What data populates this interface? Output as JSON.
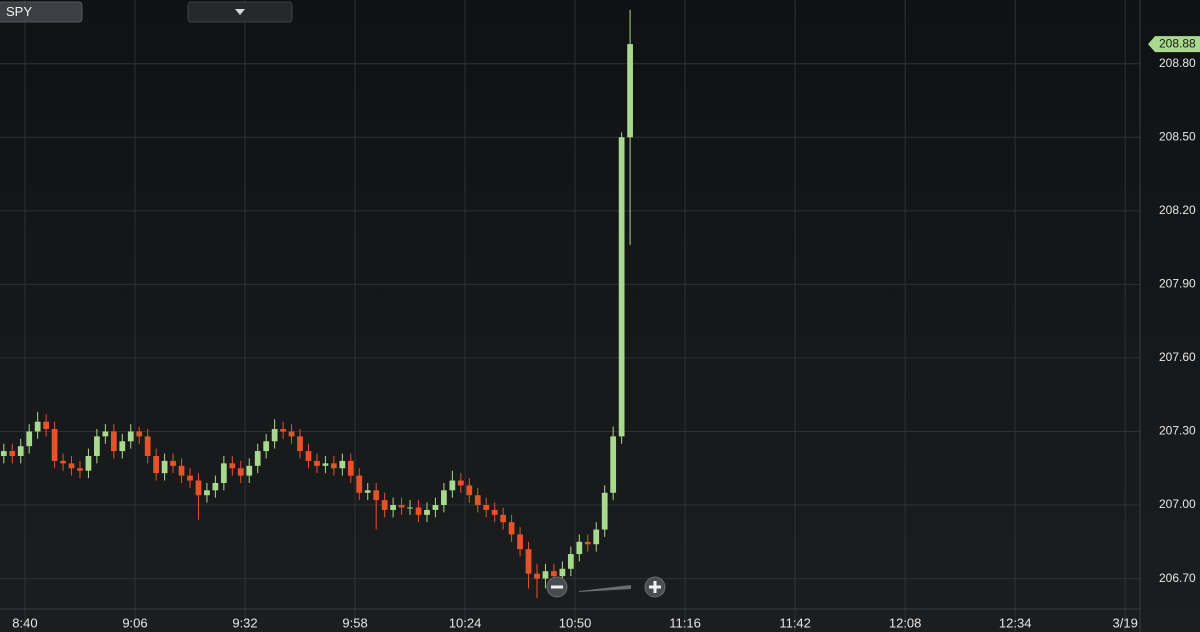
{
  "symbol": "SPY",
  "chart_data": {
    "type": "candlestick",
    "x": [
      515,
      517,
      519,
      521,
      523,
      525,
      527,
      529,
      531,
      533,
      535,
      537,
      539,
      541,
      543,
      545,
      547,
      549,
      551,
      553,
      555,
      557,
      559,
      561,
      563,
      565,
      567,
      569,
      571,
      573,
      575,
      577,
      579,
      581,
      583,
      585,
      587,
      589,
      591,
      593,
      595,
      597,
      599,
      601,
      603,
      605,
      607,
      609,
      611,
      613,
      615,
      617,
      619,
      621,
      623,
      625,
      627,
      629,
      631,
      633,
      635,
      637,
      639,
      641,
      643,
      645,
      647,
      649,
      651,
      653,
      655,
      657,
      659,
      661,
      663
    ],
    "open": [
      207.2,
      207.22,
      207.2,
      207.24,
      207.3,
      207.34,
      207.31,
      207.18,
      207.17,
      207.15,
      207.14,
      207.2,
      207.28,
      207.3,
      207.22,
      207.26,
      207.3,
      207.28,
      207.2,
      207.13,
      207.18,
      207.16,
      207.12,
      207.1,
      207.04,
      207.06,
      207.09,
      207.17,
      207.15,
      207.12,
      207.16,
      207.22,
      207.26,
      207.31,
      207.3,
      207.28,
      207.22,
      207.18,
      207.16,
      207.17,
      207.15,
      207.18,
      207.12,
      207.05,
      207.06,
      207.02,
      206.98,
      207.0,
      206.99,
      206.99,
      206.96,
      206.98,
      207.0,
      207.06,
      207.1,
      207.08,
      207.04,
      207.0,
      206.98,
      206.96,
      206.93,
      206.88,
      206.82,
      206.72,
      206.7,
      206.73,
      206.71,
      206.74,
      206.8,
      206.85,
      206.84,
      206.9,
      207.05,
      207.28,
      208.5
    ],
    "high": [
      207.25,
      207.25,
      207.27,
      207.33,
      207.38,
      207.37,
      207.34,
      207.21,
      207.2,
      207.18,
      207.23,
      207.31,
      207.33,
      207.33,
      207.29,
      207.33,
      207.32,
      207.31,
      207.23,
      207.21,
      207.21,
      207.19,
      207.15,
      207.13,
      207.09,
      207.12,
      207.2,
      207.2,
      207.18,
      207.19,
      207.25,
      207.29,
      207.35,
      207.34,
      207.33,
      207.31,
      207.25,
      207.21,
      207.2,
      207.2,
      207.21,
      207.21,
      207.15,
      207.09,
      207.09,
      207.05,
      207.03,
      207.03,
      207.02,
      207.02,
      207.01,
      207.03,
      207.09,
      207.14,
      207.13,
      207.11,
      207.07,
      207.03,
      207.01,
      206.99,
      206.96,
      206.91,
      206.85,
      206.76,
      206.76,
      206.76,
      206.77,
      206.83,
      206.88,
      206.88,
      206.93,
      207.08,
      207.32,
      208.52,
      209.02
    ],
    "low": [
      207.17,
      207.17,
      207.17,
      207.21,
      207.27,
      207.28,
      207.15,
      207.14,
      207.12,
      207.11,
      207.11,
      207.17,
      207.25,
      207.19,
      207.19,
      207.23,
      207.25,
      207.17,
      207.1,
      207.1,
      207.13,
      207.09,
      207.07,
      206.94,
      207.01,
      207.03,
      207.06,
      207.12,
      207.09,
      207.09,
      207.13,
      207.19,
      207.23,
      207.27,
      207.25,
      207.19,
      207.15,
      207.13,
      207.13,
      207.12,
      207.12,
      207.09,
      207.02,
      207.02,
      206.9,
      206.95,
      206.95,
      206.96,
      206.96,
      206.93,
      206.93,
      206.95,
      206.97,
      207.03,
      207.05,
      207.01,
      206.97,
      206.95,
      206.93,
      206.9,
      206.85,
      206.79,
      206.66,
      206.62,
      206.66,
      206.68,
      206.68,
      206.71,
      206.77,
      206.81,
      206.81,
      206.87,
      207.02,
      207.25,
      208.06
    ],
    "close": [
      207.22,
      207.2,
      207.24,
      207.3,
      207.34,
      207.31,
      207.18,
      207.17,
      207.15,
      207.14,
      207.2,
      207.28,
      207.3,
      207.22,
      207.26,
      207.3,
      207.28,
      207.2,
      207.13,
      207.18,
      207.16,
      207.12,
      207.1,
      207.04,
      207.06,
      207.09,
      207.17,
      207.15,
      207.12,
      207.16,
      207.22,
      207.26,
      207.31,
      207.3,
      207.28,
      207.22,
      207.18,
      207.16,
      207.17,
      207.15,
      207.18,
      207.12,
      207.05,
      207.06,
      207.02,
      206.98,
      207.0,
      206.99,
      206.99,
      206.96,
      206.98,
      207.0,
      207.06,
      207.1,
      207.08,
      207.04,
      207.0,
      206.98,
      206.96,
      206.93,
      206.88,
      206.82,
      206.72,
      206.7,
      206.73,
      206.71,
      206.74,
      206.8,
      206.85,
      206.84,
      206.9,
      207.05,
      207.28,
      208.5,
      208.88
    ],
    "up_color": "#a9d98e",
    "down_color": "#e5532b",
    "last_price": 208.88,
    "xlim": [
      514.1,
      783.5
    ],
    "xticks": [
      {
        "value": 520,
        "label": "8:40"
      },
      {
        "value": 546,
        "label": "9:06"
      },
      {
        "value": 572,
        "label": "9:32"
      },
      {
        "value": 598,
        "label": "9:58"
      },
      {
        "value": 624,
        "label": "10:24"
      },
      {
        "value": 650,
        "label": "10:50"
      },
      {
        "value": 676,
        "label": "11:16"
      },
      {
        "value": 702,
        "label": "11:42"
      },
      {
        "value": 728,
        "label": "12:08"
      },
      {
        "value": 754,
        "label": "12:34"
      },
      {
        "value": 780,
        "label": "3/19"
      }
    ],
    "ylim": [
      206.58,
      209.06
    ],
    "yticks": [
      {
        "value": 206.7,
        "label": "206.70"
      },
      {
        "value": 207.0,
        "label": "207.00"
      },
      {
        "value": 207.3,
        "label": "207.30"
      },
      {
        "value": 207.6,
        "label": "207.60"
      },
      {
        "value": 207.9,
        "label": "207.90"
      },
      {
        "value": 208.2,
        "label": "208.20"
      },
      {
        "value": 208.5,
        "label": "208.50"
      },
      {
        "value": 208.8,
        "label": "208.80"
      }
    ],
    "grid": true
  }
}
